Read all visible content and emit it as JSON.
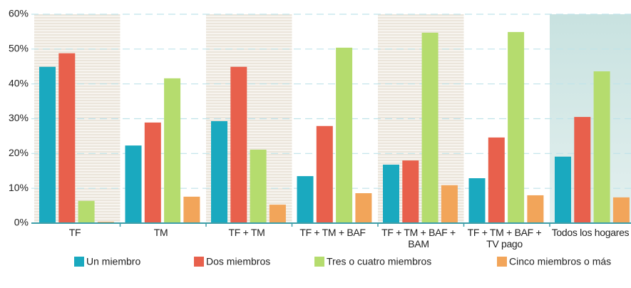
{
  "chart_data": {
    "type": "bar",
    "categories": [
      "TF",
      "TM",
      "TF + TM",
      "TF + TM + BAF",
      "TF + TM + BAF +\nBAM",
      "TF + TM + BAF +\nTV pago",
      "Todos los hogares"
    ],
    "series": [
      {
        "name": "Un miembro",
        "color": "#1aa9bf",
        "values": [
          44.9,
          22.3,
          29.3,
          13.5,
          16.8,
          12.9,
          19.1
        ]
      },
      {
        "name": "Dos miembros",
        "color": "#e8604c",
        "values": [
          48.8,
          28.9,
          44.9,
          27.9,
          18.0,
          24.6,
          30.5
        ]
      },
      {
        "name": "Tres o cuatro miembros",
        "color": "#b5dc6e",
        "values": [
          6.4,
          41.6,
          21.1,
          50.4,
          54.7,
          54.9,
          43.6
        ]
      },
      {
        "name": "Cinco miembros o más",
        "color": "#f2a55a",
        "values": [
          0.4,
          7.6,
          5.3,
          8.6,
          10.9,
          8.0,
          7.4
        ]
      }
    ],
    "ylim": [
      0,
      60
    ],
    "yticks": [
      {
        "value": 0,
        "label": "0%"
      },
      {
        "value": 10,
        "label": "10%"
      },
      {
        "value": 20,
        "label": "20%"
      },
      {
        "value": 30,
        "label": "30%"
      },
      {
        "value": 40,
        "label": "40%"
      },
      {
        "value": 50,
        "label": "50%"
      },
      {
        "value": 60,
        "label": "60%"
      }
    ],
    "grid": true,
    "legend": "bottom"
  }
}
